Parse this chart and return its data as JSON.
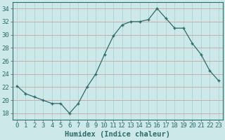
{
  "x": [
    0,
    1,
    2,
    3,
    4,
    5,
    6,
    7,
    8,
    9,
    10,
    11,
    12,
    13,
    14,
    15,
    16,
    17,
    18,
    19,
    20,
    21,
    22,
    23
  ],
  "y": [
    22.2,
    21.0,
    20.5,
    20.0,
    19.5,
    19.5,
    18.0,
    19.5,
    22.0,
    24.0,
    27.0,
    29.8,
    31.5,
    32.0,
    32.0,
    32.3,
    34.0,
    32.5,
    31.0,
    31.0,
    28.7,
    27.0,
    24.5,
    23.0
  ],
  "bg_color": "#cce8e8",
  "line_color": "#2d6b6b",
  "grid_v_color": "#a8d0d0",
  "grid_h_color": "#c8a8a8",
  "xlabel": "Humidex (Indice chaleur)",
  "xlim": [
    -0.5,
    23.5
  ],
  "ylim": [
    17,
    35
  ],
  "yticks": [
    18,
    20,
    22,
    24,
    26,
    28,
    30,
    32,
    34
  ],
  "xtick_labels": [
    "0",
    "1",
    "2",
    "3",
    "4",
    "5",
    "6",
    "7",
    "8",
    "9",
    "10",
    "11",
    "12",
    "13",
    "14",
    "15",
    "16",
    "17",
    "18",
    "19",
    "20",
    "21",
    "22",
    "23"
  ],
  "label_fontsize": 7.5,
  "tick_fontsize": 6.5
}
